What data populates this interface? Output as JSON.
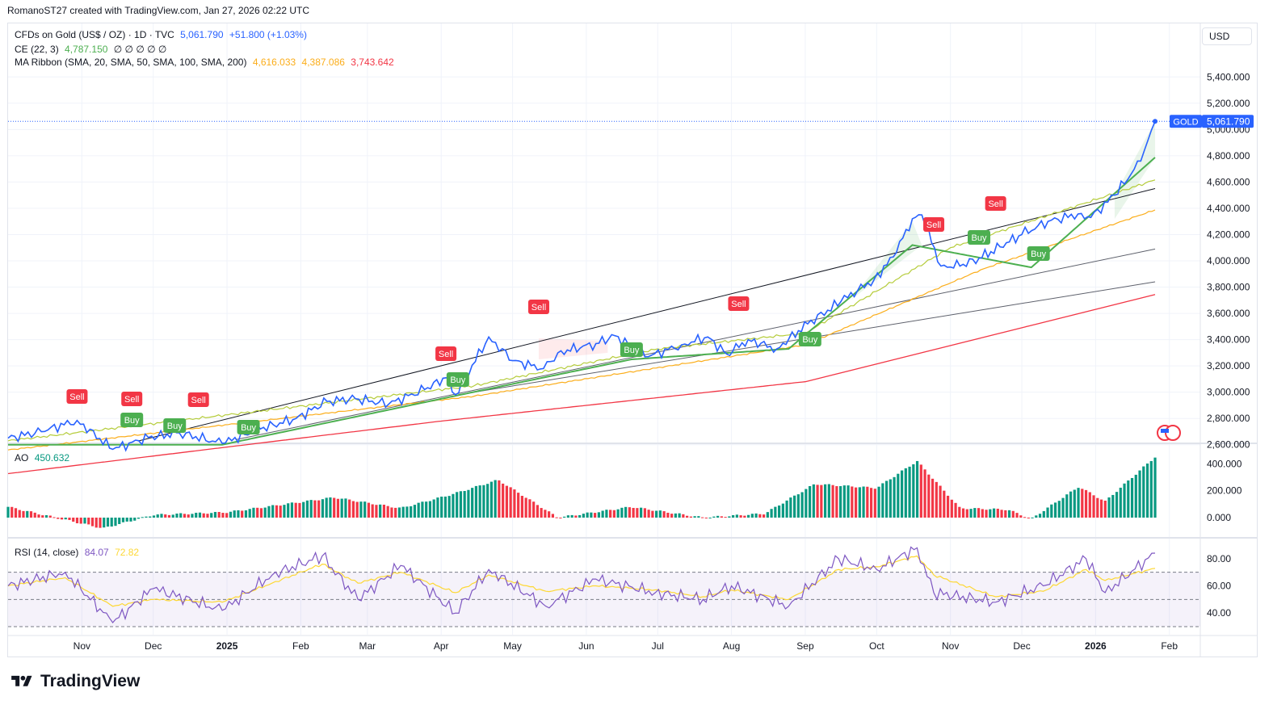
{
  "header": {
    "attribution": "RomanoST27 created with TradingView.com, Jan 27, 2026 02:22 UTC"
  },
  "legend": {
    "symbol": "CFDs on Gold (US$ / OZ) · 1D · TVC",
    "price": "5,061.790",
    "change": "+51.800 (+1.03%)",
    "ce_label": "CE (22, 3)",
    "ce_value": "4,787.150",
    "ce_zeros": "∅ ∅ ∅ ∅ ∅",
    "ma_label": "MA Ribbon (SMA, 20, SMA, 50, SMA, 100, SMA, 200)",
    "ma_values": [
      "4,616.033",
      "4,387.086",
      "3,743.642"
    ],
    "ao_label": "AO",
    "ao_value": "450.632",
    "rsi_label": "RSI (14, close)",
    "rsi_value": "84.07",
    "rsi_ma_value": "72.82"
  },
  "price_axis": {
    "unit": "USD",
    "ticks": [
      "5,400.000",
      "5,200.000",
      "5,000.000",
      "4,800.000",
      "4,600.000",
      "4,400.000",
      "4,200.000",
      "4,000.000",
      "3,800.000",
      "3,600.000",
      "3,400.000",
      "3,200.000",
      "3,000.000",
      "2,800.000",
      "2,600.000"
    ],
    "symbol_tag": "GOLD",
    "last_price": "5,061.790"
  },
  "ao_axis": {
    "ticks": [
      "400.000",
      "200.000",
      "0.000"
    ]
  },
  "rsi_axis": {
    "ticks": [
      "80.00",
      "60.00",
      "40.00"
    ]
  },
  "time_axis": {
    "labels": [
      "Nov",
      "Dec",
      "2025",
      "Feb",
      "Mar",
      "Apr",
      "May",
      "Jun",
      "Jul",
      "Aug",
      "Sep",
      "Oct",
      "Nov",
      "Dec",
      "2026",
      "Feb"
    ],
    "bold": [
      "2025",
      "2026"
    ]
  },
  "brand": {
    "name": "TradingView"
  },
  "colors": {
    "price": "#2962ff",
    "ce_long": "#4caf50",
    "ce_short": "#f23645",
    "sma20": "#b5cc3a",
    "sma50": "#fbad1a",
    "sma200": "#f23645",
    "ao_up": "#089981",
    "ao_down": "#f23645",
    "rsi": "#7e57c2",
    "rsi_ma": "#fdd835"
  },
  "chart_data": {
    "type": "line",
    "title": "CFDs on Gold (US$ / OZ) · 1D · TVC",
    "ylabel": "USD",
    "ylim": [
      2450,
      5500
    ],
    "price_series": {
      "name": "GOLD",
      "x": [
        "2024-10-01",
        "2024-10-15",
        "2024-10-30",
        "2024-11-14",
        "2024-11-29",
        "2024-12-12",
        "2024-12-30",
        "2025-01-15",
        "2025-01-30",
        "2025-02-12",
        "2025-02-24",
        "2025-03-10",
        "2025-03-25",
        "2025-04-03",
        "2025-04-07",
        "2025-04-21",
        "2025-05-01",
        "2025-05-14",
        "2025-05-20",
        "2025-06-05",
        "2025-06-13",
        "2025-06-27",
        "2025-07-11",
        "2025-07-22",
        "2025-07-30",
        "2025-08-08",
        "2025-08-20",
        "2025-09-02",
        "2025-09-16",
        "2025-09-30",
        "2025-10-08",
        "2025-10-16",
        "2025-10-20",
        "2025-10-28",
        "2025-11-05",
        "2025-11-13",
        "2025-11-18",
        "2025-12-01",
        "2025-12-12",
        "2025-12-26",
        "2025-12-30",
        "2026-01-09",
        "2026-01-20",
        "2026-01-26"
      ],
      "values": [
        2650,
        2700,
        2785,
        2565,
        2655,
        2690,
        2610,
        2720,
        2800,
        2930,
        2950,
        2910,
        3020,
        3110,
        2980,
        3420,
        3240,
        3180,
        3300,
        3370,
        3430,
        3270,
        3360,
        3420,
        3290,
        3400,
        3330,
        3520,
        3690,
        3860,
        4030,
        4320,
        4350,
        3960,
        3960,
        4020,
        4070,
        4200,
        4300,
        4360,
        4330,
        4500,
        4760,
        5061.79
      ]
    },
    "ce_long_stop": {
      "x": [
        "2024-10-01",
        "2024-12-30",
        "2025-04-09",
        "2025-06-20",
        "2025-08-25",
        "2025-10-16",
        "2025-12-05",
        "2026-01-26"
      ],
      "values": [
        2600,
        2600,
        2980,
        3250,
        3330,
        4120,
        3950,
        4787.15
      ]
    },
    "sma20": {
      "x": [
        "2024-10-01",
        "2025-04-15",
        "2025-07-01",
        "2025-09-01",
        "2025-11-01",
        "2026-01-26"
      ],
      "values": [
        2630,
        3050,
        3330,
        3450,
        4100,
        4616.03
      ]
    },
    "sma50": {
      "x": [
        "2024-10-01",
        "2025-04-15",
        "2025-09-01",
        "2025-11-15",
        "2026-01-26"
      ],
      "values": [
        2560,
        2970,
        3360,
        3940,
        4387.09
      ]
    },
    "sma200": {
      "x": [
        "2024-10-01",
        "2025-04-01",
        "2025-09-01",
        "2026-01-26"
      ],
      "values": [
        2380,
        2780,
        3080,
        3743.64
      ]
    },
    "signals": [
      {
        "label": "Sell",
        "x": "2024-10-30"
      },
      {
        "label": "Sell",
        "x": "2024-11-22"
      },
      {
        "label": "Sell",
        "x": "2024-12-20"
      },
      {
        "label": "Buy",
        "x": "2024-11-22"
      },
      {
        "label": "Buy",
        "x": "2024-12-10"
      },
      {
        "label": "Buy",
        "x": "2025-01-10"
      },
      {
        "label": "Sell",
        "x": "2025-04-03"
      },
      {
        "label": "Buy",
        "x": "2025-04-08"
      },
      {
        "label": "Sell",
        "x": "2025-05-12"
      },
      {
        "label": "Buy",
        "x": "2025-06-20"
      },
      {
        "label": "Sell",
        "x": "2025-08-04"
      },
      {
        "label": "Buy",
        "x": "2025-09-03"
      },
      {
        "label": "Sell",
        "x": "2025-10-25"
      },
      {
        "label": "Buy",
        "x": "2025-11-13"
      },
      {
        "label": "Sell",
        "x": "2025-11-20"
      },
      {
        "label": "Buy",
        "x": "2025-12-08"
      }
    ],
    "ao": {
      "ylim": [
        -100,
        450
      ],
      "x": [
        "2024-10-01",
        "2024-11-10",
        "2024-12-01",
        "2025-01-01",
        "2025-02-15",
        "2025-03-15",
        "2025-04-05",
        "2025-04-25",
        "2025-05-20",
        "2025-06-20",
        "2025-07-20",
        "2025-08-15",
        "2025-09-05",
        "2025-10-01",
        "2025-10-18",
        "2025-11-05",
        "2025-11-25",
        "2025-12-05",
        "2025-12-25",
        "2026-01-05",
        "2026-01-26"
      ],
      "values": [
        80,
        -80,
        20,
        40,
        150,
        70,
        170,
        280,
        0,
        80,
        0,
        30,
        250,
        220,
        420,
        70,
        60,
        -10,
        230,
        120,
        450.63
      ]
    },
    "rsi": {
      "ylim": [
        30,
        90
      ],
      "x": [
        "2024-10-01",
        "2024-10-25",
        "2024-11-14",
        "2024-12-01",
        "2024-12-30",
        "2025-01-20",
        "2025-02-10",
        "2025-02-25",
        "2025-03-15",
        "2025-04-07",
        "2025-04-21",
        "2025-05-15",
        "2025-06-05",
        "2025-06-30",
        "2025-07-20",
        "2025-08-01",
        "2025-08-25",
        "2025-09-15",
        "2025-10-01",
        "2025-10-18",
        "2025-10-25",
        "2025-11-20",
        "2025-12-10",
        "2025-12-28",
        "2026-01-05",
        "2026-01-26"
      ],
      "values": [
        60,
        70,
        33,
        58,
        42,
        68,
        82,
        50,
        75,
        40,
        72,
        45,
        65,
        55,
        50,
        60,
        45,
        80,
        72,
        88,
        55,
        48,
        60,
        80,
        55,
        84.07
      ],
      "rsi_ma_values": [
        60,
        66,
        45,
        50,
        48,
        62,
        76,
        62,
        70,
        55,
        68,
        56,
        60,
        57,
        52,
        57,
        50,
        72,
        74,
        82,
        68,
        52,
        56,
        72,
        64,
        72.82
      ]
    }
  }
}
